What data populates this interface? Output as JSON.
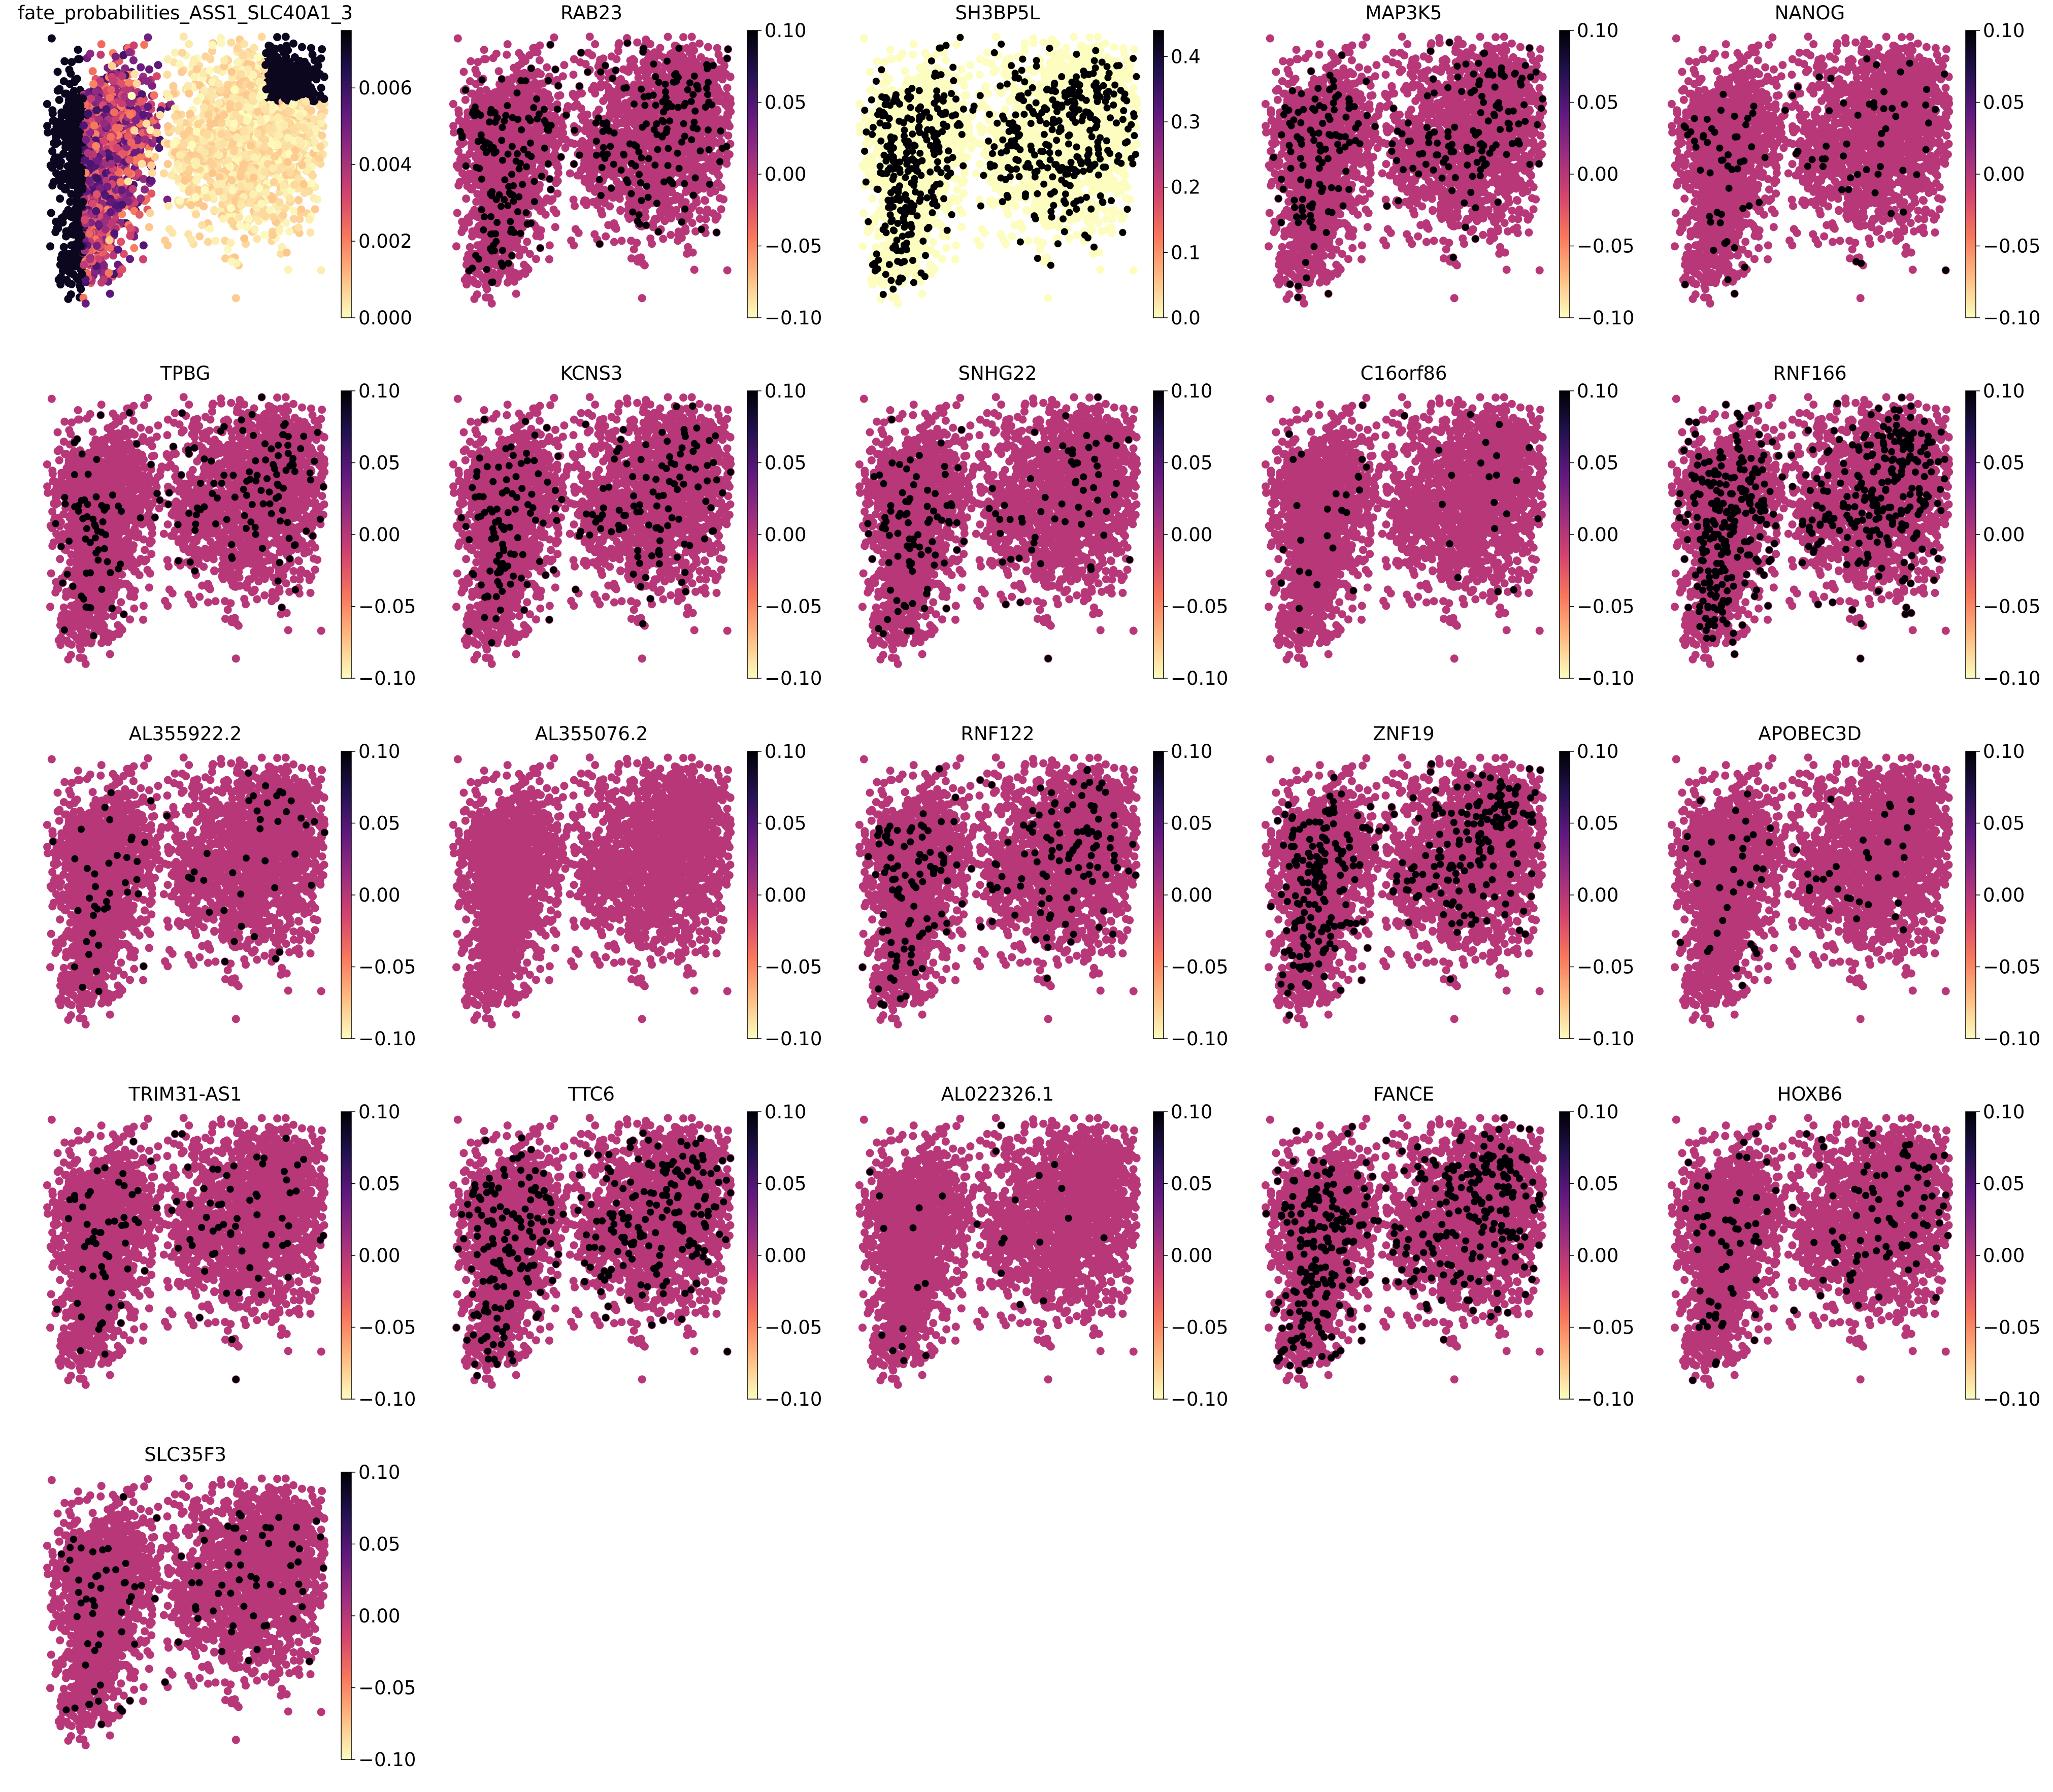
{
  "figure": {
    "colormap_name": "magma_r",
    "colormap_stops": [
      "#fcfdbf",
      "#febb81",
      "#f8765c",
      "#d3436e",
      "#982d80",
      "#5f187f",
      "#221150",
      "#000004"
    ],
    "uniform_point_color": "#b73779",
    "expressed_point_color": "#000004",
    "missing_point_color": "#fcfdbf"
  },
  "chart_data": [
    {
      "type": "scatter",
      "title": "fate_probabilities_ASS1_SLC40A1_3",
      "colorbar_ticks": [
        "0.000",
        "0.002",
        "0.004",
        "0.006"
      ],
      "colorbar_range": [
        0,
        0.0075
      ],
      "mode": "fate",
      "expressed_fraction": 0.0,
      "axes": "off",
      "grid": false
    },
    {
      "type": "scatter",
      "title": "RAB23",
      "colorbar_ticks": [
        "−0.10",
        "−0.05",
        "0.00",
        "0.05",
        "0.10"
      ],
      "colorbar_range": [
        -0.1,
        0.1
      ],
      "mode": "binary",
      "expressed_fraction": 0.08,
      "axes": "off",
      "grid": false
    },
    {
      "type": "scatter",
      "title": "SH3BP5L",
      "colorbar_ticks": [
        "0.0",
        "0.1",
        "0.2",
        "0.3",
        "0.4"
      ],
      "colorbar_range": [
        0,
        0.44
      ],
      "mode": "sparse_yellow",
      "expressed_fraction": 0.17,
      "axes": "off",
      "grid": false
    },
    {
      "type": "scatter",
      "title": "MAP3K5",
      "colorbar_ticks": [
        "−0.10",
        "−0.05",
        "0.00",
        "0.05",
        "0.10"
      ],
      "colorbar_range": [
        -0.1,
        0.1
      ],
      "mode": "binary",
      "expressed_fraction": 0.07,
      "axes": "off",
      "grid": false
    },
    {
      "type": "scatter",
      "title": "NANOG",
      "colorbar_ticks": [
        "−0.10",
        "−0.05",
        "0.00",
        "0.05",
        "0.10"
      ],
      "colorbar_range": [
        -0.1,
        0.1
      ],
      "mode": "binary",
      "expressed_fraction": 0.03,
      "axes": "off",
      "grid": false
    },
    {
      "type": "scatter",
      "title": "TPBG",
      "colorbar_ticks": [
        "−0.10",
        "−0.05",
        "0.00",
        "0.05",
        "0.10"
      ],
      "colorbar_range": [
        -0.1,
        0.1
      ],
      "mode": "binary",
      "expressed_fraction": 0.05,
      "axes": "off",
      "grid": false
    },
    {
      "type": "scatter",
      "title": "KCNS3",
      "colorbar_ticks": [
        "−0.10",
        "−0.05",
        "0.00",
        "0.05",
        "0.10"
      ],
      "colorbar_range": [
        -0.1,
        0.1
      ],
      "mode": "binary",
      "expressed_fraction": 0.06,
      "axes": "off",
      "grid": false
    },
    {
      "type": "scatter",
      "title": "SNHG22",
      "colorbar_ticks": [
        "−0.10",
        "−0.05",
        "0.00",
        "0.05",
        "0.10"
      ],
      "colorbar_range": [
        -0.1,
        0.1
      ],
      "mode": "binary",
      "expressed_fraction": 0.05,
      "axes": "off",
      "grid": false
    },
    {
      "type": "scatter",
      "title": "C16orf86",
      "colorbar_ticks": [
        "−0.10",
        "−0.05",
        "0.00",
        "0.05",
        "0.10"
      ],
      "colorbar_range": [
        -0.1,
        0.1
      ],
      "mode": "binary",
      "expressed_fraction": 0.02,
      "axes": "off",
      "grid": false
    },
    {
      "type": "scatter",
      "title": "RNF166",
      "colorbar_ticks": [
        "−0.10",
        "−0.05",
        "0.00",
        "0.05",
        "0.10"
      ],
      "colorbar_range": [
        -0.1,
        0.1
      ],
      "mode": "binary",
      "expressed_fraction": 0.14,
      "axes": "off",
      "grid": false
    },
    {
      "type": "scatter",
      "title": "AL355922.2",
      "colorbar_ticks": [
        "−0.10",
        "−0.05",
        "0.00",
        "0.05",
        "0.10"
      ],
      "colorbar_range": [
        -0.1,
        0.1
      ],
      "mode": "binary",
      "expressed_fraction": 0.02,
      "axes": "off",
      "grid": false
    },
    {
      "type": "scatter",
      "title": "AL355076.2",
      "colorbar_ticks": [
        "−0.10",
        "−0.05",
        "0.00",
        "0.05",
        "0.10"
      ],
      "colorbar_range": [
        -0.1,
        0.1
      ],
      "mode": "binary",
      "expressed_fraction": 0.0,
      "axes": "off",
      "grid": false
    },
    {
      "type": "scatter",
      "title": "RNF122",
      "colorbar_ticks": [
        "−0.10",
        "−0.05",
        "0.00",
        "0.05",
        "0.10"
      ],
      "colorbar_range": [
        -0.1,
        0.1
      ],
      "mode": "binary",
      "expressed_fraction": 0.07,
      "axes": "off",
      "grid": false
    },
    {
      "type": "scatter",
      "title": "ZNF19",
      "colorbar_ticks": [
        "−0.10",
        "−0.05",
        "0.00",
        "0.05",
        "0.10"
      ],
      "colorbar_range": [
        -0.1,
        0.1
      ],
      "mode": "binary",
      "expressed_fraction": 0.1,
      "axes": "off",
      "grid": false
    },
    {
      "type": "scatter",
      "title": "APOBEC3D",
      "colorbar_ticks": [
        "−0.10",
        "−0.05",
        "0.00",
        "0.05",
        "0.10"
      ],
      "colorbar_range": [
        -0.1,
        0.1
      ],
      "mode": "binary",
      "expressed_fraction": 0.015,
      "axes": "off",
      "grid": false
    },
    {
      "type": "scatter",
      "title": "TRIM31-AS1",
      "colorbar_ticks": [
        "−0.10",
        "−0.05",
        "0.00",
        "0.05",
        "0.10"
      ],
      "colorbar_range": [
        -0.1,
        0.1
      ],
      "mode": "binary",
      "expressed_fraction": 0.03,
      "axes": "off",
      "grid": false
    },
    {
      "type": "scatter",
      "title": "TTC6",
      "colorbar_ticks": [
        "−0.10",
        "−0.05",
        "0.00",
        "0.05",
        "0.10"
      ],
      "colorbar_range": [
        -0.1,
        0.1
      ],
      "mode": "binary",
      "expressed_fraction": 0.1,
      "axes": "off",
      "grid": false
    },
    {
      "type": "scatter",
      "title": "AL022326.1",
      "colorbar_ticks": [
        "−0.10",
        "−0.05",
        "0.00",
        "0.05",
        "0.10"
      ],
      "colorbar_range": [
        -0.1,
        0.1
      ],
      "mode": "binary",
      "expressed_fraction": 0.005,
      "axes": "off",
      "grid": false
    },
    {
      "type": "scatter",
      "title": "FANCE",
      "colorbar_ticks": [
        "−0.10",
        "−0.05",
        "0.00",
        "0.05",
        "0.10"
      ],
      "colorbar_range": [
        -0.1,
        0.1
      ],
      "mode": "binary",
      "expressed_fraction": 0.11,
      "axes": "off",
      "grid": false
    },
    {
      "type": "scatter",
      "title": "HOXB6",
      "colorbar_ticks": [
        "−0.10",
        "−0.05",
        "0.00",
        "0.05",
        "0.10"
      ],
      "colorbar_range": [
        -0.1,
        0.1
      ],
      "mode": "binary",
      "expressed_fraction": 0.04,
      "axes": "off",
      "grid": false
    },
    {
      "type": "scatter",
      "title": "SLC35F3",
      "colorbar_ticks": [
        "−0.10",
        "−0.05",
        "0.00",
        "0.05",
        "0.10"
      ],
      "colorbar_range": [
        -0.1,
        0.1
      ],
      "mode": "binary",
      "expressed_fraction": 0.03,
      "axes": "off",
      "grid": false
    }
  ]
}
